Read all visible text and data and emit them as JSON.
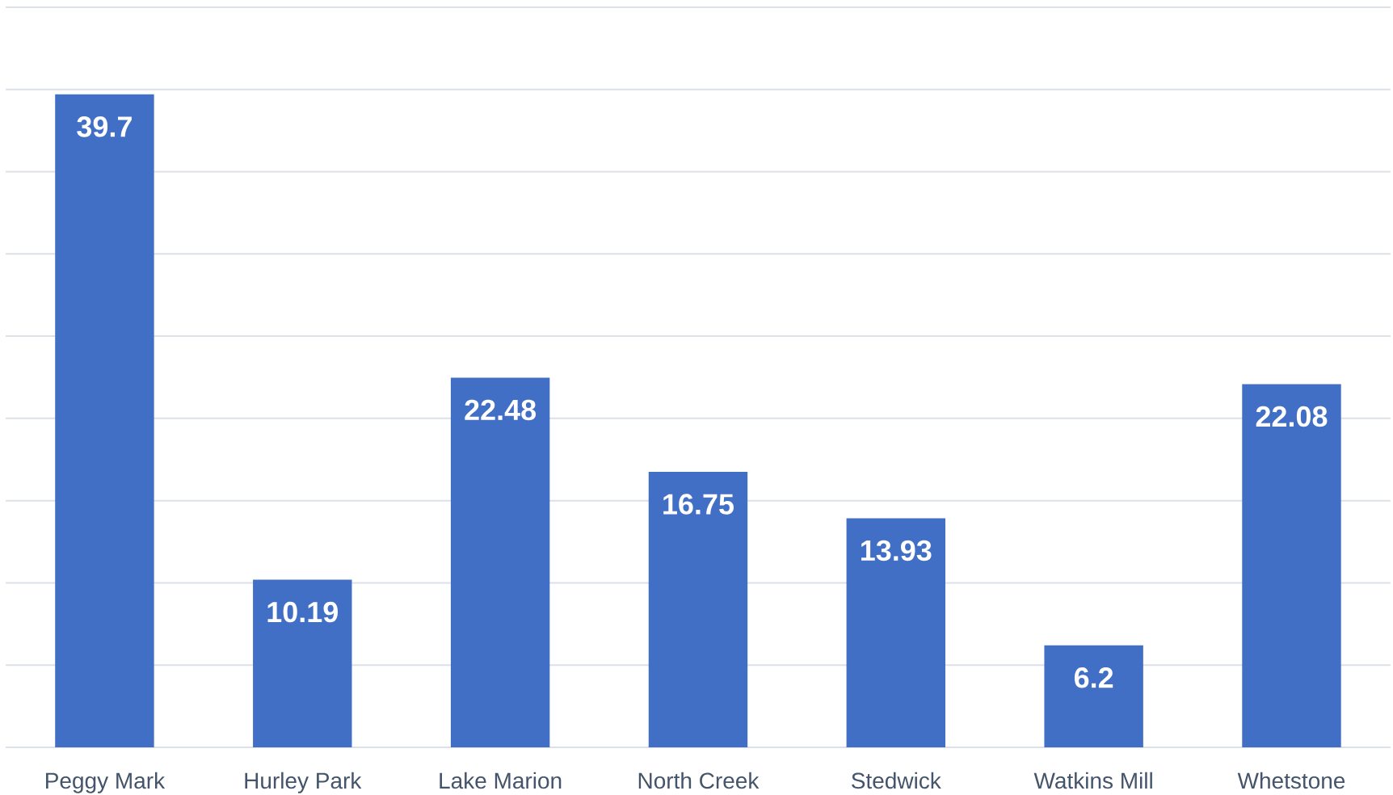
{
  "chart_data": {
    "type": "bar",
    "categories": [
      "Peggy Mark",
      "Hurley Park",
      "Lake Marion",
      "North Creek",
      "Stedwick",
      "Watkins Mill",
      "Whetstone"
    ],
    "values": [
      39.7,
      10.19,
      22.48,
      16.75,
      13.93,
      6.2,
      22.08
    ],
    "color": "#426fc6",
    "grid": "y",
    "tick_labels": "x",
    "data_labels": true
  }
}
